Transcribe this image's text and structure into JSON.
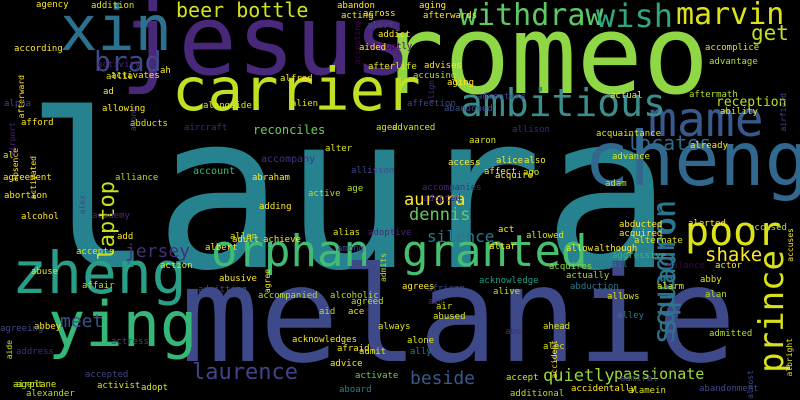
{
  "word_cloud": {
    "background": "#000000",
    "palette": [
      "#440154",
      "#482878",
      "#3e4989",
      "#31688e",
      "#26828e",
      "#1f9e89",
      "#35b779",
      "#6ece58",
      "#b5de2b",
      "#fde725"
    ],
    "words": [
      {
        "text": "laura",
        "color": "#26828e"
      },
      {
        "text": "melanie",
        "color": "#3e4989"
      },
      {
        "text": "romeo",
        "color": "#8fd744"
      },
      {
        "text": "jesus",
        "color": "#482878"
      },
      {
        "text": "cheng",
        "color": "#31688e"
      },
      {
        "text": "carrier",
        "color": "#c2df23"
      },
      {
        "text": "zheng",
        "color": "#2a9f88"
      },
      {
        "text": "ying",
        "color": "#35b779"
      },
      {
        "text": "xin",
        "color": "#2c718e"
      },
      {
        "text": "orphan",
        "color": "#40bd72"
      },
      {
        "text": "granted",
        "color": "#46c06f"
      },
      {
        "text": "mame",
        "color": "#38598c"
      },
      {
        "text": "ambitious",
        "color": "#3a8d8b"
      },
      {
        "text": "withdraw",
        "color": "#5ec962"
      },
      {
        "text": "poor",
        "color": "#dde318"
      },
      {
        "text": "prince",
        "color": "#d8e219"
      },
      {
        "text": "squadron",
        "color": "#2e6e8e"
      },
      {
        "text": "wish",
        "color": "#32a684"
      },
      {
        "text": "marvin",
        "color": "#dde318"
      },
      {
        "text": "brad",
        "color": "#3e4a89"
      },
      {
        "text": "laptop",
        "color": "#c8e020"
      },
      {
        "text": "laurence",
        "color": "#414487"
      },
      {
        "text": "beer bottle",
        "color": "#d2e21b"
      },
      {
        "text": "get",
        "color": "#c2df23"
      },
      {
        "text": "locates",
        "color": "#31688e"
      },
      {
        "text": "shake",
        "color": "#fde725"
      },
      {
        "text": "aurora",
        "color": "#fde725"
      },
      {
        "text": "dennis",
        "color": "#65cb5e"
      },
      {
        "text": "beside",
        "color": "#38598c"
      },
      {
        "text": "jersey",
        "color": "#472d7b"
      },
      {
        "text": "meet",
        "color": "#3b518b"
      },
      {
        "text": "silence",
        "color": "#2a788e"
      },
      {
        "text": "quietly",
        "color": "#95d840"
      },
      {
        "text": "passionate",
        "color": "#a0da39"
      },
      {
        "text": "reception",
        "color": "#bddf26"
      },
      {
        "text": "reconciles",
        "color": "#6ccd5a"
      },
      {
        "text": "squadron",
        "color": "#2a788e"
      },
      {
        "text": "accompany",
        "color": "#46327e"
      },
      {
        "text": "account",
        "color": "#35b779"
      },
      {
        "text": "advanced",
        "color": "#d8e219"
      },
      {
        "text": "acquaintance",
        "color": "#e5e419"
      },
      {
        "text": "advance",
        "color": "#dde318"
      },
      {
        "text": "already",
        "color": "#fde725"
      },
      {
        "text": "accomplice",
        "color": "#dde318"
      },
      {
        "text": "advantage",
        "color": "#b5de2b"
      },
      {
        "text": "aftermath",
        "color": "#b5de2b"
      },
      {
        "text": "ability",
        "color": "#dde318"
      },
      {
        "text": "airfield",
        "color": "#3e4989"
      },
      {
        "text": "actual",
        "color": "#fde725"
      },
      {
        "text": "adventure",
        "color": "#414487"
      },
      {
        "text": "abandoned",
        "color": "#3b518b"
      },
      {
        "text": "adam",
        "color": "#bddf26"
      },
      {
        "text": "abducted",
        "color": "#fde725"
      },
      {
        "text": "alerted",
        "color": "#fde725"
      },
      {
        "text": "accused",
        "color": "#b5de2b"
      },
      {
        "text": "accuses",
        "color": "#fde725"
      },
      {
        "text": "acquired",
        "color": "#fde725"
      },
      {
        "text": "alternate",
        "color": "#dde318"
      },
      {
        "text": "abigail",
        "color": "#2a788e"
      },
      {
        "text": "aggressive",
        "color": "#35b779"
      },
      {
        "text": "abby",
        "color": "#dde318"
      },
      {
        "text": "alan",
        "color": "#b5de2b"
      },
      {
        "text": "alarm",
        "color": "#d8e219"
      },
      {
        "text": "allows",
        "color": "#d8e219"
      },
      {
        "text": "abduction",
        "color": "#2a788e"
      },
      {
        "text": "actually",
        "color": "#a0da39"
      },
      {
        "text": "acquires",
        "color": "#8fd744"
      },
      {
        "text": "alive",
        "color": "#c2df23"
      },
      {
        "text": "acknowledge",
        "color": "#1f9e89"
      },
      {
        "text": "african",
        "color": "#3e4989"
      },
      {
        "text": "aim",
        "color": "#482878"
      },
      {
        "text": "agrees",
        "color": "#fde725"
      },
      {
        "text": "air",
        "color": "#dde318"
      },
      {
        "text": "abused",
        "color": "#dde318"
      },
      {
        "text": "abu",
        "color": "#472d7b"
      },
      {
        "text": "accident",
        "color": "#fde725"
      },
      {
        "text": "ahead",
        "color": "#d8e219"
      },
      {
        "text": "alec",
        "color": "#dde318"
      },
      {
        "text": "alley",
        "color": "#2a788e"
      },
      {
        "text": "admitted",
        "color": "#b5de2b"
      },
      {
        "text": "accept",
        "color": "#dde318"
      },
      {
        "text": "admiral",
        "color": "#414487"
      },
      {
        "text": "accidentally",
        "color": "#fde725"
      },
      {
        "text": "alamein",
        "color": "#d8e219"
      },
      {
        "text": "abandonment",
        "color": "#3e4989"
      },
      {
        "text": "almost",
        "color": "#3e4989"
      },
      {
        "text": "albright",
        "color": "#dde318"
      },
      {
        "text": "actor",
        "color": "#fde725"
      },
      {
        "text": "balance",
        "color": "#440154"
      },
      {
        "text": "alone",
        "color": "#dde318"
      },
      {
        "text": "ally",
        "color": "#26828e"
      },
      {
        "text": "activate",
        "color": "#6ece58"
      },
      {
        "text": "additional",
        "color": "#b5de2b"
      },
      {
        "text": "aboard",
        "color": "#26828e"
      },
      {
        "text": "adopt",
        "color": "#dde318"
      },
      {
        "text": "activist",
        "color": "#dde318"
      },
      {
        "text": "accepted",
        "color": "#414487"
      },
      {
        "text": "airplane",
        "color": "#dde318"
      },
      {
        "text": "agent",
        "color": "#b5de2b"
      },
      {
        "text": "alexander",
        "color": "#b5de2b"
      },
      {
        "text": "abbey",
        "color": "#fde725"
      },
      {
        "text": "aide",
        "color": "#dde318"
      },
      {
        "text": "address",
        "color": "#482878"
      },
      {
        "text": "actress",
        "color": "#414487"
      },
      {
        "text": "agreeing",
        "color": "#3e4989"
      },
      {
        "text": "affair",
        "color": "#b5de2b"
      },
      {
        "text": "abuse",
        "color": "#dde318"
      },
      {
        "text": "accepts",
        "color": "#dde318"
      },
      {
        "text": "action",
        "color": "#dde318"
      },
      {
        "text": "add",
        "color": "#fde725"
      },
      {
        "text": "albert",
        "color": "#fde725"
      },
      {
        "text": "adult",
        "color": "#fde725"
      },
      {
        "text": "agree",
        "color": "#fde725"
      },
      {
        "text": "admitting",
        "color": "#3e4989"
      },
      {
        "text": "abusive",
        "color": "#fde725"
      },
      {
        "text": "accompanied",
        "color": "#b5de2b"
      },
      {
        "text": "alcoholic",
        "color": "#b5de2b"
      },
      {
        "text": "agreed",
        "color": "#b5de2b"
      },
      {
        "text": "aid",
        "color": "#b5de2b"
      },
      {
        "text": "ace",
        "color": "#dde318"
      },
      {
        "text": "always",
        "color": "#dde318"
      },
      {
        "text": "acknowledges",
        "color": "#fde725"
      },
      {
        "text": "afraid",
        "color": "#fde725"
      },
      {
        "text": "admit",
        "color": "#dde318"
      },
      {
        "text": "advice",
        "color": "#fde725"
      },
      {
        "text": "among",
        "color": "#3e4989"
      },
      {
        "text": "admits",
        "color": "#b5de2b"
      },
      {
        "text": "alias",
        "color": "#dde318"
      },
      {
        "text": "adoptive",
        "color": "#482878"
      },
      {
        "text": "altar",
        "color": "#fde725"
      },
      {
        "text": "allow",
        "color": "#fde725"
      },
      {
        "text": "accompanies",
        "color": "#482878"
      },
      {
        "text": "adopted",
        "color": "#482878"
      },
      {
        "text": "act",
        "color": "#fde725"
      },
      {
        "text": "allowed",
        "color": "#dde318"
      },
      {
        "text": "although",
        "color": "#fde725"
      },
      {
        "text": "affect",
        "color": "#fde725"
      },
      {
        "text": "alice",
        "color": "#fde725"
      },
      {
        "text": "also",
        "color": "#fde725"
      },
      {
        "text": "access",
        "color": "#fde725"
      },
      {
        "text": "acquire",
        "color": "#fde725"
      },
      {
        "text": "ago",
        "color": "#dde318"
      },
      {
        "text": "alter",
        "color": "#dde318"
      },
      {
        "text": "aged",
        "color": "#dde318"
      },
      {
        "text": "aaron",
        "color": "#dde318"
      },
      {
        "text": "allison",
        "color": "#482878"
      },
      {
        "text": "allisson",
        "color": "#3e4989"
      },
      {
        "text": "age",
        "color": "#b5de2b"
      },
      {
        "text": "active",
        "color": "#b5de2b"
      },
      {
        "text": "abraham",
        "color": "#fde725"
      },
      {
        "text": "adding",
        "color": "#fde725"
      },
      {
        "text": "achieve",
        "color": "#fde725"
      },
      {
        "text": "allen",
        "color": "#dde318"
      },
      {
        "text": "alliance",
        "color": "#b5de2b"
      },
      {
        "text": "academy",
        "color": "#482878"
      },
      {
        "text": "alex",
        "color": "#3e4989"
      },
      {
        "text": "aircraft",
        "color": "#482878"
      },
      {
        "text": "abducts",
        "color": "#dde318"
      },
      {
        "text": "along",
        "color": "#414487"
      },
      {
        "text": "allowing",
        "color": "#fde725"
      },
      {
        "text": "alien",
        "color": "#dde318"
      },
      {
        "text": "alongside",
        "color": "#dde318"
      },
      {
        "text": "alfred",
        "color": "#fde725"
      },
      {
        "text": "affection",
        "color": "#3e4989"
      },
      {
        "text": "align",
        "color": "#472d7b"
      },
      {
        "text": "accusing",
        "color": "#b5de2b"
      },
      {
        "text": "advises",
        "color": "#fde725"
      },
      {
        "text": "aging",
        "color": "#fde725"
      },
      {
        "text": "afterlife",
        "color": "#dde318"
      },
      {
        "text": "abruptly",
        "color": "#440154"
      },
      {
        "text": "addict",
        "color": "#fde725"
      },
      {
        "text": "aided",
        "color": "#fde725"
      },
      {
        "text": "alert",
        "color": "#3e4989"
      },
      {
        "text": "accepting",
        "color": "#440154"
      },
      {
        "text": "acting",
        "color": "#fde725"
      },
      {
        "text": "across",
        "color": "#fde725"
      },
      {
        "text": "afterwards",
        "color": "#fde725"
      },
      {
        "text": "aging",
        "color": "#fde725"
      },
      {
        "text": "agency",
        "color": "#fde725"
      },
      {
        "text": "addition",
        "color": "#dde318"
      },
      {
        "text": "abandon",
        "color": "#fde725"
      },
      {
        "text": "activity",
        "color": "#482878"
      },
      {
        "text": "activates",
        "color": "#fde725"
      },
      {
        "text": "allie",
        "color": "#dde318"
      },
      {
        "text": "according",
        "color": "#fde725"
      },
      {
        "text": "afterward",
        "color": "#fde725"
      },
      {
        "text": "ad",
        "color": "#fde725"
      },
      {
        "text": "ah",
        "color": "#fde725"
      },
      {
        "text": "alpha",
        "color": "#3e4989"
      },
      {
        "text": "airport",
        "color": "#482878"
      },
      {
        "text": "absence",
        "color": "#fde725"
      },
      {
        "text": "activated",
        "color": "#fde725"
      },
      {
        "text": "afford",
        "color": "#fde725"
      },
      {
        "text": "agreement",
        "color": "#fde725"
      },
      {
        "text": "al",
        "color": "#dde318"
      },
      {
        "text": "abortion",
        "color": "#fde725"
      },
      {
        "text": "alcohol",
        "color": "#fde725"
      }
    ]
  }
}
